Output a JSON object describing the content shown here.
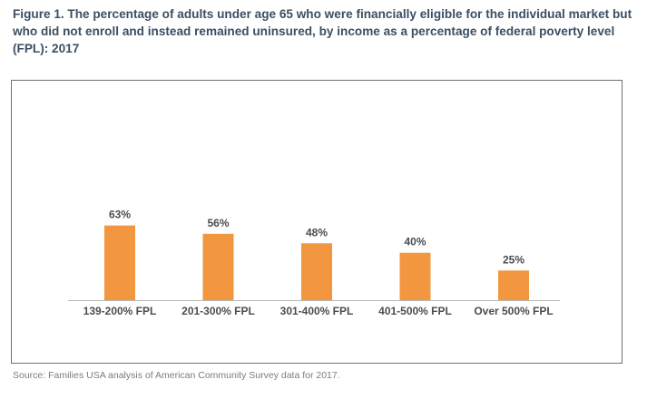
{
  "figure": {
    "title": "Figure 1. The percentage of adults under age 65 who were financially eligible for the individual market but who did not enroll and instead remained uninsured, by income as a percentage of federal poverty level (FPL): 2017",
    "source": "Source: Families USA analysis of American Community Survey data for 2017."
  },
  "colors": {
    "bar": "#f29640",
    "title": "#3a4f63",
    "label": "#4a4d51",
    "axis": "#b8b8b8"
  },
  "chart_data": {
    "type": "bar",
    "title": "Figure 1. The percentage of adults under age 65 who were financially eligible for the individual market but who did not enroll and instead remained uninsured, by income as a percentage of federal poverty level (FPL): 2017",
    "categories": [
      "139-200% FPL",
      "201-300% FPL",
      "301-400% FPL",
      "401-500% FPL",
      "Over 500% FPL"
    ],
    "values": [
      63,
      56,
      48,
      40,
      25
    ],
    "data_labels": [
      "63%",
      "56%",
      "48%",
      "40%",
      "25%"
    ],
    "xlabel": "",
    "ylabel": "",
    "ylim": [
      0,
      100
    ],
    "grid": false,
    "legend": "none"
  }
}
